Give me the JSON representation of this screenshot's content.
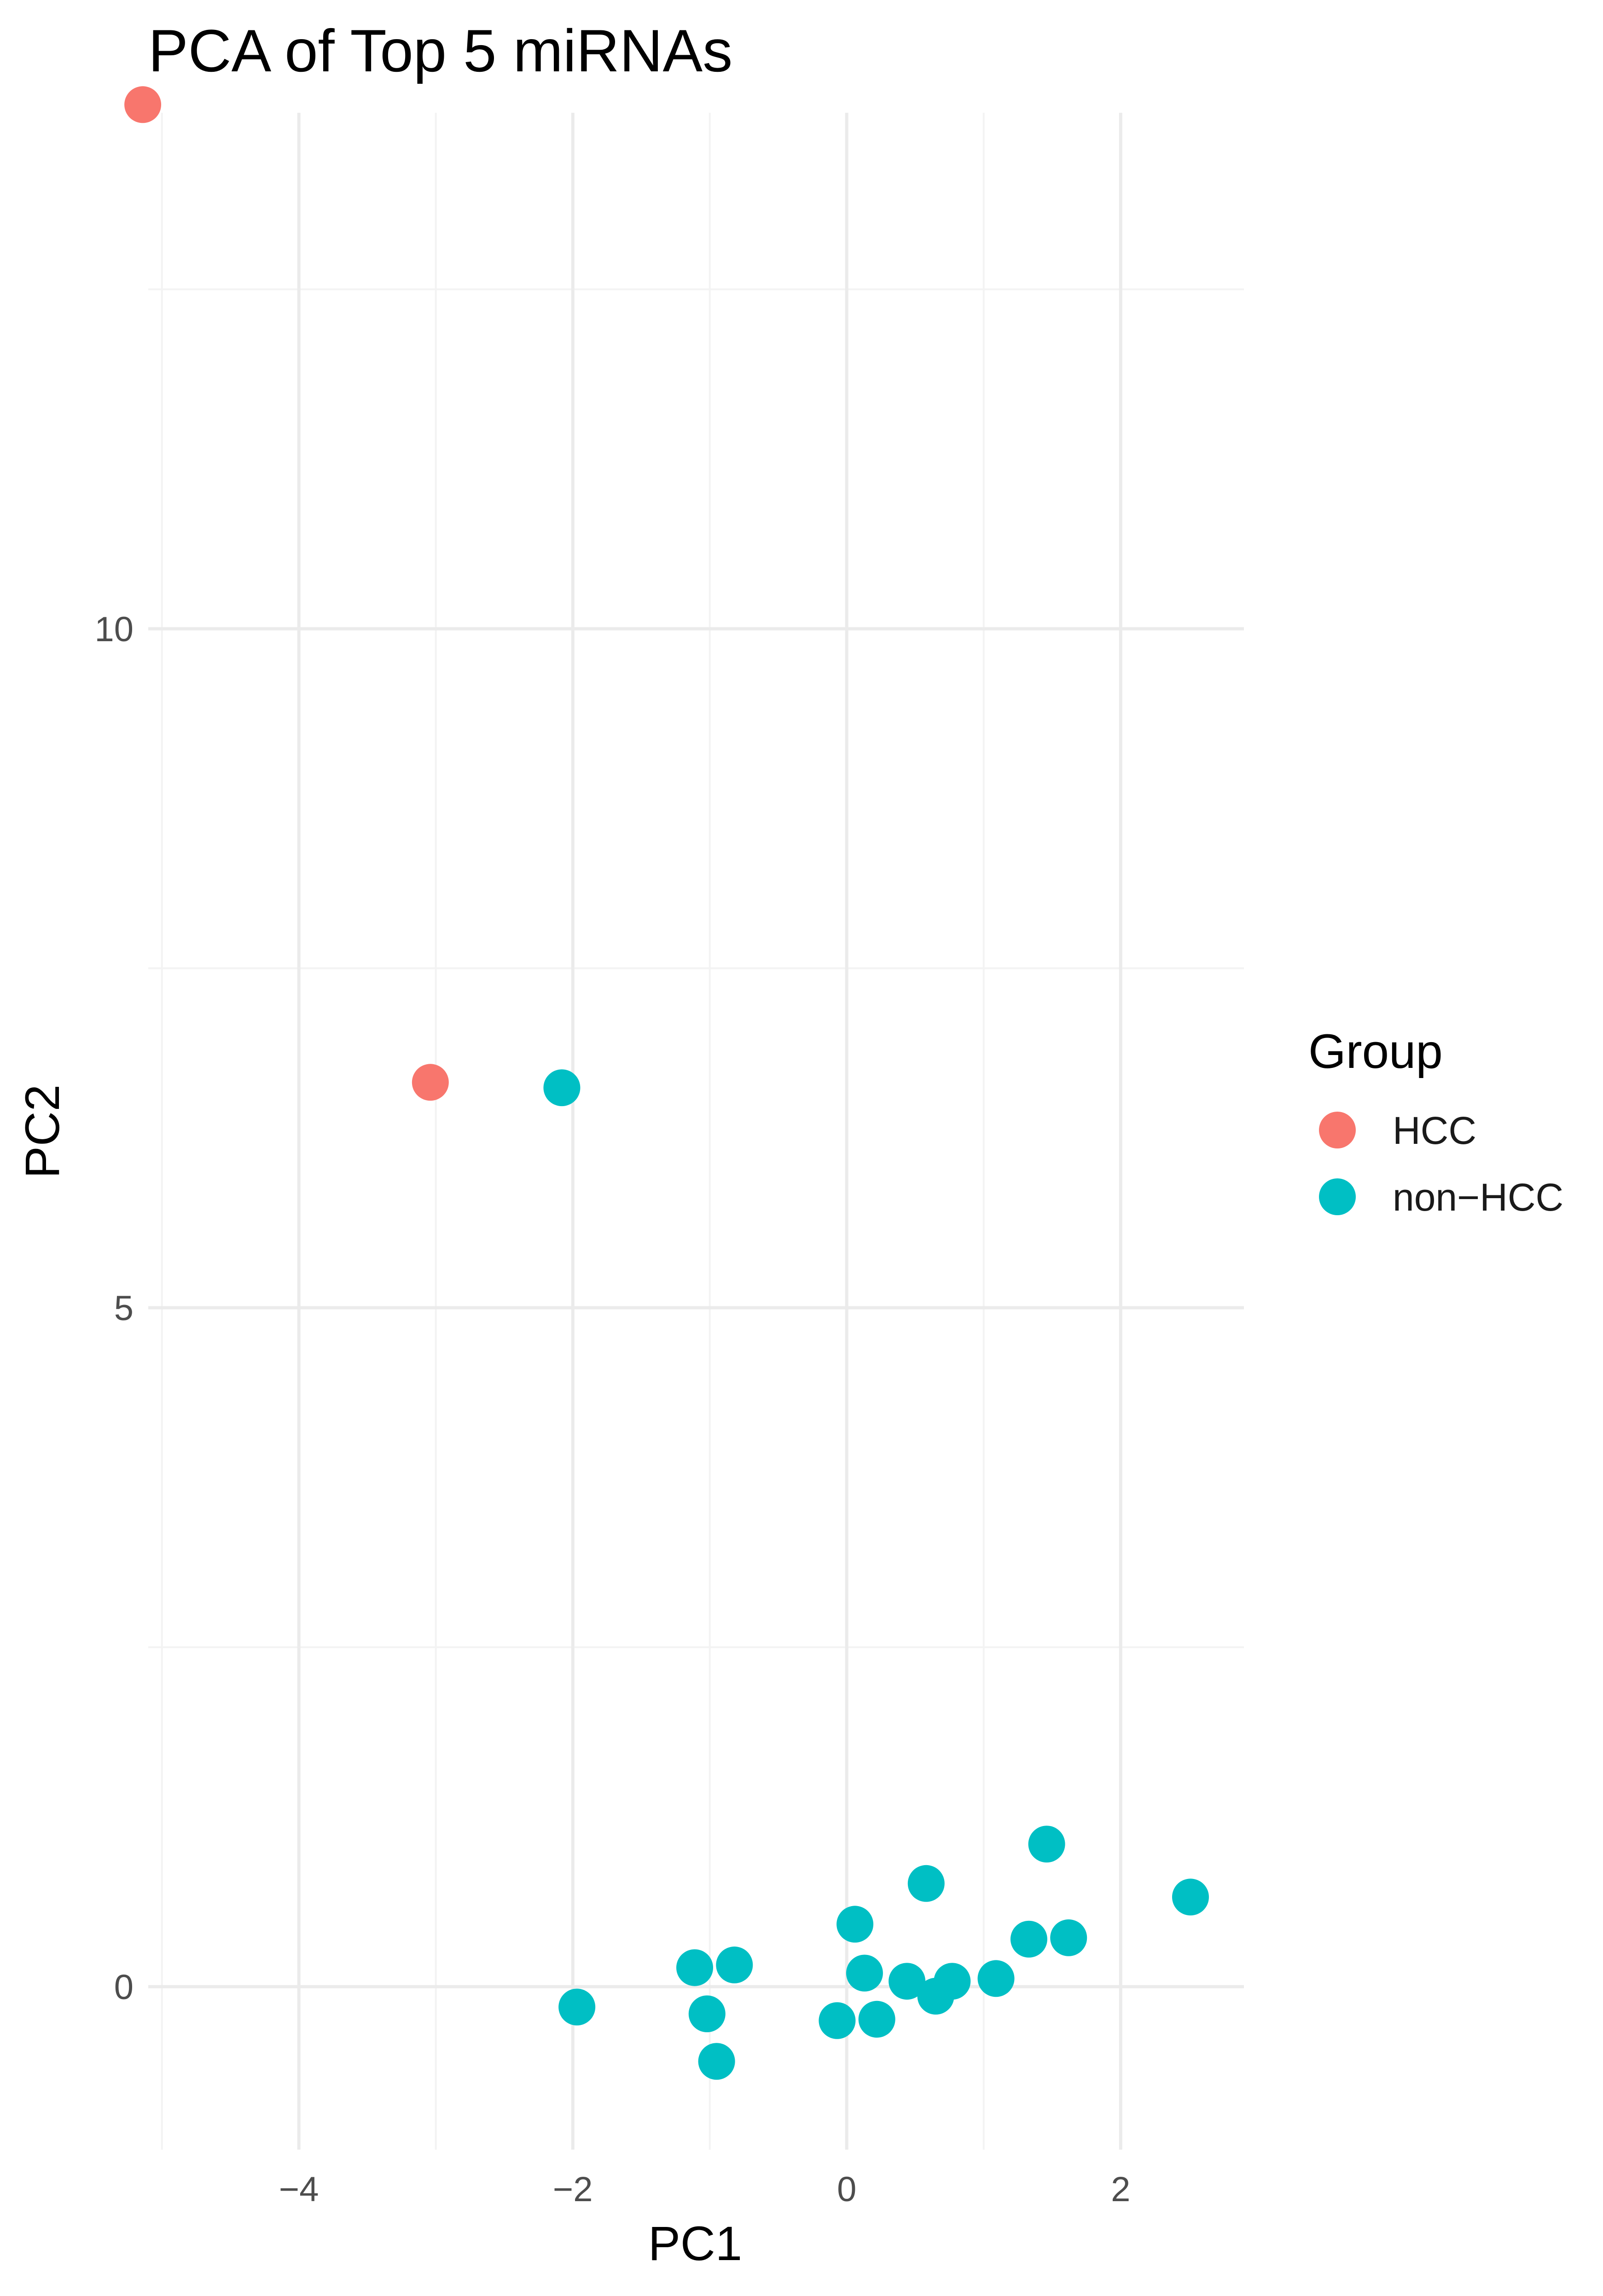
{
  "chart_data": {
    "type": "scatter",
    "title": "PCA of Top 5 miRNAs",
    "xlabel": "PC1",
    "ylabel": "PC2",
    "xlim": [
      -5.1,
      2.9
    ],
    "ylim": [
      -1.2,
      13.8
    ],
    "x_ticks": [
      -4,
      -2,
      0,
      2
    ],
    "x_tick_labels": [
      "−4",
      "−2",
      "0",
      "2"
    ],
    "y_ticks": [
      0,
      5,
      10
    ],
    "y_tick_labels": [
      "0",
      "5",
      "10"
    ],
    "x_minor_ticks": [
      -5,
      -3,
      -1,
      1
    ],
    "y_minor_ticks": [
      2.5,
      7.5,
      12.5
    ],
    "grid": true,
    "legend": {
      "title": "Group",
      "position": "right"
    },
    "series": [
      {
        "name": "HCC",
        "color": "#F8766D",
        "points": [
          {
            "x": -5.14,
            "y": 13.86
          },
          {
            "x": -3.04,
            "y": 6.66
          }
        ]
      },
      {
        "name": "non−HCC",
        "color": "#00BFC4",
        "points": [
          {
            "x": -2.08,
            "y": 6.62
          },
          {
            "x": -1.97,
            "y": -0.15
          },
          {
            "x": -1.11,
            "y": 0.14
          },
          {
            "x": -0.82,
            "y": 0.16
          },
          {
            "x": -1.02,
            "y": -0.2
          },
          {
            "x": -0.95,
            "y": -0.55
          },
          {
            "x": -0.07,
            "y": -0.25
          },
          {
            "x": 0.06,
            "y": 0.46
          },
          {
            "x": 0.13,
            "y": 0.1
          },
          {
            "x": 0.22,
            "y": -0.24
          },
          {
            "x": 0.44,
            "y": 0.04
          },
          {
            "x": 0.58,
            "y": 0.76
          },
          {
            "x": 0.65,
            "y": -0.07
          },
          {
            "x": 0.77,
            "y": 0.04
          },
          {
            "x": 1.09,
            "y": 0.06
          },
          {
            "x": 1.33,
            "y": 0.35
          },
          {
            "x": 1.46,
            "y": 1.05
          },
          {
            "x": 1.62,
            "y": 0.36
          },
          {
            "x": 2.51,
            "y": 0.66
          }
        ]
      }
    ]
  }
}
